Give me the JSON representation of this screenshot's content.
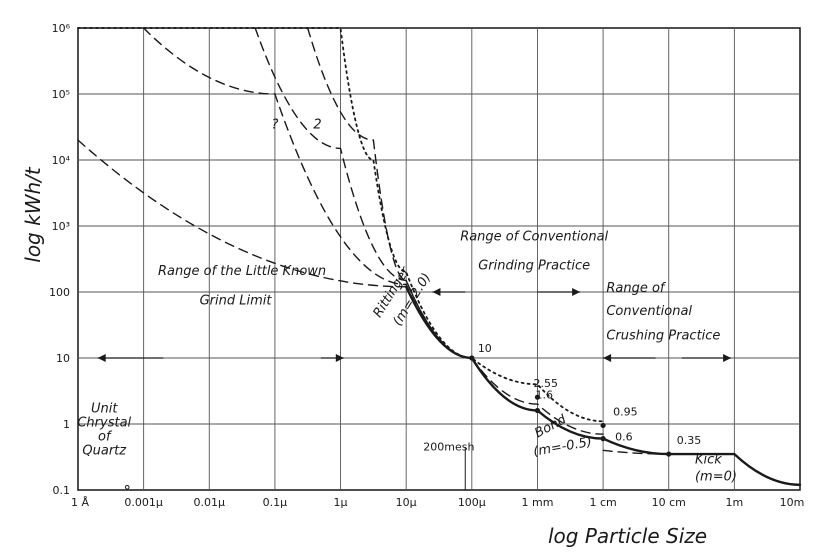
{
  "chart_data": {
    "type": "line",
    "xlabel": "log Particle Size",
    "ylabel": "log kWh/t",
    "x_scale": "log",
    "y_scale": "log",
    "x_ticks": [
      "1 Å",
      "0.001μ",
      "0.01μ",
      "0.1μ",
      "1μ",
      "10μ",
      "100μ",
      "1 mm",
      "1 cm",
      "10 cm",
      "1m",
      "10m"
    ],
    "y_ticks": [
      "10⁶",
      "10⁵",
      "10⁴",
      "10³",
      "100",
      "10",
      "1",
      "0.1"
    ],
    "xlim": [
      "1 Å",
      "10m"
    ],
    "ylim": [
      0.1,
      1000000
    ],
    "grid": true,
    "series": [
      {
        "name": "Rittinger (m=-2.0)",
        "style": "dotted",
        "points": [
          [
            -10,
            1000000
          ],
          [
            -6,
            1000000
          ],
          [
            -5.5,
            10000
          ],
          [
            -5,
            200
          ],
          [
            -4,
            10
          ],
          [
            -3,
            4
          ],
          [
            -2,
            1.1
          ]
        ]
      },
      {
        "name": "Bond (m=-0.5)",
        "style": "dashed",
        "points": [
          [
            -4,
            10
          ],
          [
            -3,
            2
          ],
          [
            -2,
            0.7
          ]
        ]
      },
      {
        "name": "Kick (m=0)",
        "style": "dashed",
        "points": [
          [
            -2,
            0.4
          ],
          [
            -1,
            0.35
          ],
          [
            0,
            0.35
          ]
        ]
      },
      {
        "name": "2",
        "style": "dashed",
        "points": [
          [
            -6.5,
            1000000
          ],
          [
            -5.5,
            20000
          ],
          [
            -5,
            150
          ],
          [
            -4,
            10
          ]
        ]
      },
      {
        "name": "?",
        "style": "dashed",
        "points": [
          [
            -7.3,
            1000000
          ],
          [
            -6,
            15000
          ],
          [
            -5,
            150
          ],
          [
            -4,
            10
          ]
        ]
      },
      {
        "name": "",
        "style": "dashed",
        "points": [
          [
            -9,
            1000000
          ],
          [
            -7,
            100000
          ],
          [
            -5,
            130
          ],
          [
            -4,
            10
          ]
        ]
      },
      {
        "name": "",
        "style": "dashed",
        "points": [
          [
            -10,
            20000
          ],
          [
            -5,
            120
          ],
          [
            -4,
            10
          ]
        ]
      },
      {
        "name": "",
        "style": "solid",
        "points": [
          [
            -5,
            120
          ],
          [
            -4,
            10
          ],
          [
            -3,
            1.6
          ],
          [
            -2,
            0.6
          ],
          [
            -1,
            0.35
          ],
          [
            0,
            0.35
          ],
          [
            1,
            0.12
          ]
        ]
      }
    ],
    "point_labels": [
      {
        "text": "10",
        "x": -4,
        "y": 10
      },
      {
        "text": "2.55",
        "x": -3,
        "y": 2.55
      },
      {
        "text": "1.6",
        "x": -3,
        "y": 1.6
      },
      {
        "text": "0.95",
        "x": -2,
        "y": 0.95
      },
      {
        "text": "0.6",
        "x": -2,
        "y": 0.6
      },
      {
        "text": "0.35",
        "x": -1,
        "y": 0.35
      }
    ],
    "annotations": {
      "rittinger": [
        "Rittinger",
        "(m=-2.0)"
      ],
      "bond": [
        "Bond",
        "(m=-0.5)"
      ],
      "kick": [
        "Kick",
        "(m=0)"
      ],
      "curve_labels": [
        "?",
        "2"
      ],
      "mesh": "200mesh",
      "unit_crystal": [
        "Unit",
        "Chrystal",
        "of",
        "Quartz"
      ],
      "grind_limit": [
        "Range of the Little Known",
        "Grind Limit"
      ],
      "grinding": [
        "Range of Conventional",
        "Grinding Practice"
      ],
      "crushing": [
        "Range of",
        "Conventional",
        "Crushing Practice"
      ]
    }
  }
}
